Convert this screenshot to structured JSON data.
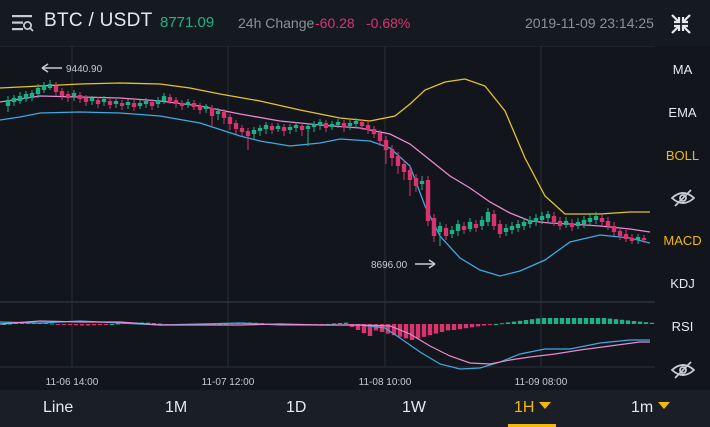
{
  "header": {
    "pair": "BTC / USDT",
    "last_price": "8771.09",
    "change_label": "24h Change",
    "change_value": "-60.28",
    "change_pct": "-0.68%",
    "timestamp": "2019-11-09 23:14:25",
    "menu_icon": "hamburger-icon",
    "fullscreen_icon": "exit-fullscreen-icon"
  },
  "sidebar": {
    "ma": "MA",
    "ema": "EMA",
    "boll": "BOLL",
    "macd": "MACD",
    "kdj": "KDJ",
    "rsi": "RSI",
    "hide_icon": "eye-hidden-icon"
  },
  "chart": {
    "high_label": "9440.90",
    "low_label": "8696.00",
    "time_labels": [
      "11-06 14:00",
      "11-07 12:00",
      "11-08 10:00",
      "11-09 08:00"
    ],
    "up_color": "#1fb08a",
    "down_color": "#d8346e",
    "boll_upper_color": "#e5c32a",
    "boll_mid_color": "#e88ad0",
    "boll_lower_color": "#3fa9e0"
  },
  "tabs": {
    "line": "Line",
    "m1mo": "1M",
    "d1": "1D",
    "w1": "1W",
    "h1": "1H",
    "min1": "1m"
  }
}
